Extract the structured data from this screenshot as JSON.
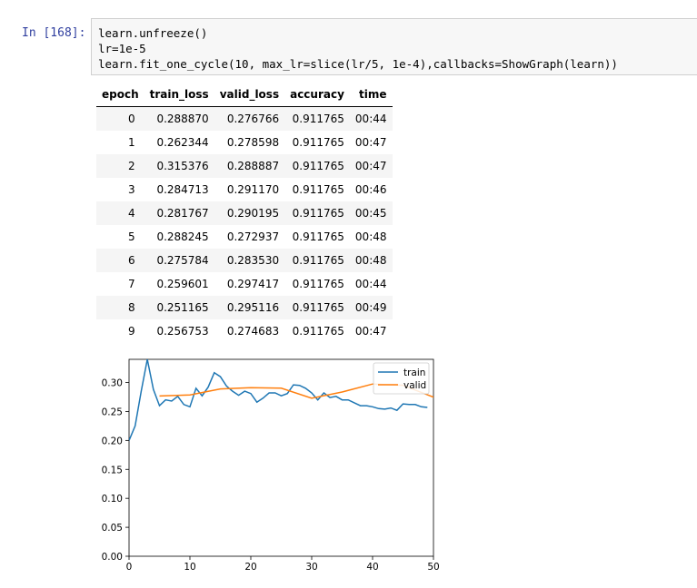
{
  "cell": {
    "prompt": "In [168]:",
    "code_lines": [
      "learn.unfreeze()",
      "lr=1e-5",
      "learn.fit_one_cycle(10, max_lr=slice(lr/5, 1e-4),callbacks=ShowGraph(learn))"
    ]
  },
  "results_table": {
    "headers": [
      "epoch",
      "train_loss",
      "valid_loss",
      "accuracy",
      "time"
    ],
    "rows": [
      [
        "0",
        "0.288870",
        "0.276766",
        "0.911765",
        "00:44"
      ],
      [
        "1",
        "0.262344",
        "0.278598",
        "0.911765",
        "00:47"
      ],
      [
        "2",
        "0.315376",
        "0.288887",
        "0.911765",
        "00:47"
      ],
      [
        "3",
        "0.284713",
        "0.291170",
        "0.911765",
        "00:46"
      ],
      [
        "4",
        "0.281767",
        "0.290195",
        "0.911765",
        "00:45"
      ],
      [
        "5",
        "0.288245",
        "0.272937",
        "0.911765",
        "00:48"
      ],
      [
        "6",
        "0.275784",
        "0.283530",
        "0.911765",
        "00:48"
      ],
      [
        "7",
        "0.259601",
        "0.297417",
        "0.911765",
        "00:44"
      ],
      [
        "8",
        "0.251165",
        "0.295116",
        "0.911765",
        "00:49"
      ],
      [
        "9",
        "0.256753",
        "0.274683",
        "0.911765",
        "00:47"
      ]
    ]
  },
  "chart_data": {
    "type": "line",
    "title": "",
    "xlabel": "",
    "ylabel": "",
    "xlim": [
      0,
      50
    ],
    "ylim": [
      0,
      0.34
    ],
    "xticks": [
      "0",
      "10",
      "20",
      "30",
      "40",
      "50"
    ],
    "yticks": [
      "0.00",
      "0.05",
      "0.10",
      "0.15",
      "0.20",
      "0.25",
      "0.30"
    ],
    "grid": false,
    "legend_position": "top-right",
    "series": [
      {
        "name": "train",
        "color": "#1f77b4",
        "x": [
          0,
          1,
          2,
          3,
          4,
          5,
          6,
          7,
          8,
          9,
          10,
          11,
          12,
          13,
          14,
          15,
          16,
          17,
          18,
          19,
          20,
          21,
          22,
          23,
          24,
          25,
          26,
          27,
          28,
          29,
          30,
          31,
          32,
          33,
          34,
          35,
          36,
          37,
          38,
          39,
          40,
          41,
          42,
          43,
          44,
          45,
          46,
          47,
          48,
          49
        ],
        "y": [
          0.2,
          0.225,
          0.285,
          0.34,
          0.288,
          0.26,
          0.27,
          0.268,
          0.276,
          0.262,
          0.258,
          0.29,
          0.277,
          0.292,
          0.317,
          0.31,
          0.294,
          0.285,
          0.278,
          0.285,
          0.281,
          0.266,
          0.273,
          0.282,
          0.282,
          0.277,
          0.281,
          0.296,
          0.295,
          0.29,
          0.282,
          0.27,
          0.282,
          0.274,
          0.276,
          0.27,
          0.27,
          0.265,
          0.26,
          0.26,
          0.258,
          0.255,
          0.254,
          0.256,
          0.252,
          0.263,
          0.262,
          0.262,
          0.258,
          0.257
        ]
      },
      {
        "name": "valid",
        "color": "#ff7f0e",
        "x": [
          5,
          10,
          15,
          20,
          25,
          30,
          35,
          40,
          45,
          50
        ],
        "y": [
          0.276766,
          0.278598,
          0.288887,
          0.29117,
          0.290195,
          0.272937,
          0.28353,
          0.297417,
          0.295116,
          0.274683
        ]
      }
    ]
  }
}
